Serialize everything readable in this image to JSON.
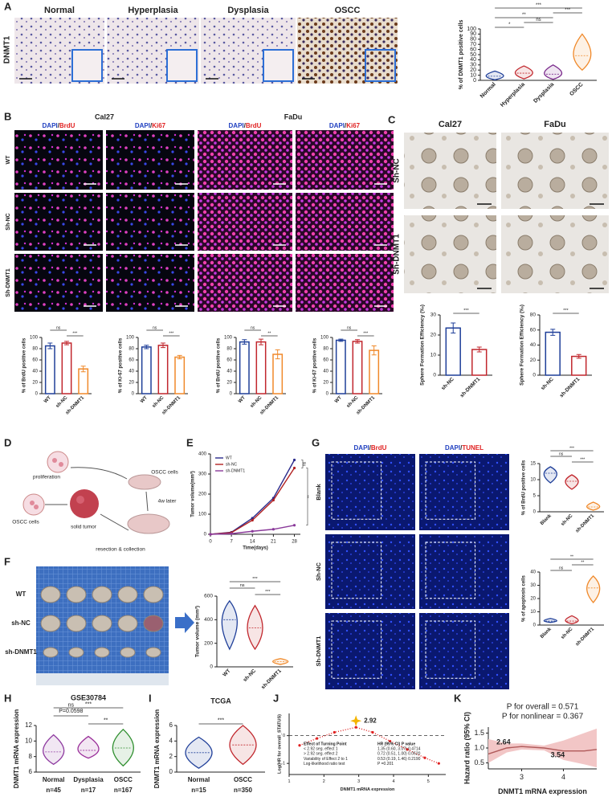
{
  "panel_labels": [
    "A",
    "B",
    "C",
    "D",
    "E",
    "F",
    "G",
    "H",
    "I",
    "J",
    "K"
  ],
  "panel_a": {
    "row_label": "DNMT1",
    "columns": [
      "Normal",
      "Hyperplasia",
      "Dysplasia",
      "OSCC"
    ]
  },
  "panel_b": {
    "cell_lines": [
      "Cal27",
      "FaDu"
    ],
    "stains": [
      {
        "dapi": "DAPI",
        "sep": "/",
        "marker": "BrdU"
      },
      {
        "dapi": "DAPI",
        "sep": "/",
        "marker": "Ki67"
      },
      {
        "dapi": "DAPI",
        "sep": "/",
        "marker": "BrdU"
      },
      {
        "dapi": "DAPI",
        "sep": "/",
        "marker": "Ki67"
      }
    ],
    "rows": [
      "WT",
      "Sh-NC",
      "Sh-DNMT1"
    ]
  },
  "panel_c": {
    "cell_lines": [
      "Cal27",
      "FaDu"
    ],
    "rows": [
      "Sh-NC",
      "Sh-DNMT1"
    ]
  },
  "panel_d": {
    "labels": [
      "proliferation",
      "OSCC cells",
      "OSCC cells",
      "4w later",
      "solid tumor",
      "resection & collection"
    ]
  },
  "panel_f": {
    "rows": [
      "WT",
      "sh-NC",
      "sh-DNMT1"
    ]
  },
  "panel_g": {
    "stains": [
      {
        "dapi": "DAPI",
        "sep": "/",
        "marker": "BrdU"
      },
      {
        "dapi": "DAPI",
        "sep": "/",
        "marker": "TUNEL"
      }
    ],
    "rows": [
      "Blank",
      "Sh-NC",
      "Sh-DNMT1"
    ]
  },
  "chart_data": [
    {
      "type": "violin",
      "ylabel": "% of DNMT1 positive cells",
      "categories": [
        "Normal",
        "Hyperplasia",
        "Dysplasia",
        "OSCC"
      ],
      "medians": [
        8,
        14,
        12,
        48
      ],
      "mins": [
        1,
        3,
        2,
        20
      ],
      "maxs": [
        18,
        28,
        30,
        90
      ],
      "colors": [
        "#1f3f99",
        "#c1272d",
        "#7a2a8c",
        "#f0892a"
      ],
      "ylim": [
        0,
        100
      ],
      "yticks": [
        0,
        10,
        20,
        30,
        40,
        50,
        60,
        70,
        80,
        90,
        100
      ],
      "brackets": [
        {
          "label": "***",
          "between": [
            "Normal",
            "OSCC"
          ]
        },
        {
          "label": "***",
          "between": [
            "Dysplasia",
            "OSCC"
          ]
        },
        {
          "label": "**",
          "between": [
            "Normal",
            "Dysplasia"
          ]
        },
        {
          "label": "ns",
          "between": [
            "Hyperplasia",
            "Dysplasia"
          ]
        },
        {
          "label": "*",
          "between": [
            "Normal",
            "Hyperplasia"
          ]
        }
      ]
    },
    {
      "type": "bar",
      "ylabel": "% of BrdU positive cells",
      "categories": [
        "WT",
        "sh-NC",
        "sh-DNMT1"
      ],
      "values": [
        85,
        90,
        44
      ],
      "errors": [
        5,
        3,
        5
      ],
      "colors": [
        "#1f3f99",
        "#c1272d",
        "#f0892a"
      ],
      "ylim": [
        0,
        100
      ],
      "yticks": [
        0,
        20,
        40,
        60,
        80,
        100
      ],
      "brackets": [
        {
          "label": "ns",
          "between": [
            "WT",
            "sh-NC"
          ]
        },
        {
          "label": "***",
          "between": [
            "sh-NC",
            "sh-DNMT1"
          ]
        }
      ]
    },
    {
      "type": "bar",
      "ylabel": "% of Ki-67 positive cells",
      "categories": [
        "WT",
        "sh-NC",
        "sh-DNMT1"
      ],
      "values": [
        83,
        86,
        65
      ],
      "errors": [
        3,
        4,
        3
      ],
      "colors": [
        "#1f3f99",
        "#c1272d",
        "#f0892a"
      ],
      "ylim": [
        0,
        100
      ],
      "yticks": [
        0,
        20,
        40,
        60,
        80,
        100
      ],
      "brackets": [
        {
          "label": "ns",
          "between": [
            "WT",
            "sh-NC"
          ]
        },
        {
          "label": "***",
          "between": [
            "sh-NC",
            "sh-DNMT1"
          ]
        }
      ]
    },
    {
      "type": "bar",
      "ylabel": "% of BrdU positive cells",
      "categories": [
        "WT",
        "sh-NC",
        "sh-DNMT1"
      ],
      "values": [
        92,
        92,
        70
      ],
      "errors": [
        4,
        5,
        8
      ],
      "colors": [
        "#1f3f99",
        "#c1272d",
        "#f0892a"
      ],
      "ylim": [
        0,
        100
      ],
      "yticks": [
        0,
        20,
        40,
        60,
        80,
        100
      ],
      "brackets": [
        {
          "label": "ns",
          "between": [
            "WT",
            "sh-NC"
          ]
        },
        {
          "label": "**",
          "between": [
            "sh-NC",
            "sh-DNMT1"
          ]
        }
      ]
    },
    {
      "type": "bar",
      "ylabel": "% of Ki-67 positive cells",
      "categories": [
        "WT",
        "sh-NC",
        "sh-DNMT1"
      ],
      "values": [
        95,
        93,
        77
      ],
      "errors": [
        2,
        3,
        8
      ],
      "colors": [
        "#1f3f99",
        "#c1272d",
        "#f0892a"
      ],
      "ylim": [
        0,
        100
      ],
      "yticks": [
        0,
        20,
        40,
        60,
        80,
        100
      ],
      "brackets": [
        {
          "label": "ns",
          "between": [
            "WT",
            "sh-NC"
          ]
        },
        {
          "label": "***",
          "between": [
            "sh-NC",
            "sh-DNMT1"
          ]
        }
      ]
    },
    {
      "type": "bar",
      "ylabel": "Sphere Formation Efficiency (‰)",
      "categories": [
        "sh-NC",
        "sh-DNMT1"
      ],
      "values": [
        23.5,
        12.8
      ],
      "errors": [
        2.5,
        1.2
      ],
      "colors": [
        "#1f3f99",
        "#c1272d"
      ],
      "ylim": [
        0,
        30
      ],
      "yticks": [
        0,
        10,
        20,
        30
      ],
      "brackets": [
        {
          "label": "***",
          "between": [
            "sh-NC",
            "sh-DNMT1"
          ]
        }
      ]
    },
    {
      "type": "bar",
      "ylabel": "Sphere Formation Efficiency (‰)",
      "categories": [
        "sh-NC",
        "sh-DNMT1"
      ],
      "values": [
        57,
        25
      ],
      "errors": [
        4,
        2.5
      ],
      "colors": [
        "#1f3f99",
        "#c1272d"
      ],
      "ylim": [
        0,
        80
      ],
      "yticks": [
        0,
        20,
        40,
        60,
        80
      ],
      "brackets": [
        {
          "label": "***",
          "between": [
            "sh-NC",
            "sh-DNMT1"
          ]
        }
      ]
    },
    {
      "type": "line",
      "xlabel": "Time(days)",
      "ylabel": "Tumor volume(mm³)",
      "x": [
        0,
        7,
        14,
        21,
        28
      ],
      "series": [
        {
          "name": "WT",
          "color": "#2b2b8c",
          "values": [
            0,
            10,
            80,
            180,
            370
          ]
        },
        {
          "name": "sh-NC",
          "color": "#b22222",
          "values": [
            0,
            8,
            70,
            170,
            330
          ]
        },
        {
          "name": "sh-DNMT1",
          "color": "#8a3a9a",
          "values": [
            0,
            3,
            15,
            25,
            45
          ]
        }
      ],
      "xlim": [
        0,
        30
      ],
      "xticks": [
        0,
        7,
        14,
        21,
        28
      ],
      "ylim": [
        0,
        400
      ],
      "yticks": [
        0,
        100,
        200,
        300,
        400
      ],
      "markers": true,
      "legend": "upper left",
      "comparisons": [
        {
          "label": "ns",
          "between": [
            "WT",
            "sh-NC"
          ]
        },
        {
          "label": "**",
          "between": [
            "sh-NC",
            "sh-DNMT1"
          ]
        }
      ]
    },
    {
      "type": "violin",
      "ylabel": "Tumor volume (mm³)",
      "categories": [
        "WT",
        "sh-NC",
        "sh-DNMT1"
      ],
      "medians": [
        400,
        330,
        45
      ],
      "mins": [
        150,
        150,
        20
      ],
      "maxs": [
        560,
        520,
        70
      ],
      "colors": [
        "#1f3f99",
        "#c1272d",
        "#f0892a"
      ],
      "ylim": [
        0,
        600
      ],
      "yticks": [
        0,
        200,
        400,
        600
      ],
      "brackets": [
        {
          "label": "***",
          "between": [
            "WT",
            "sh-DNMT1"
          ]
        },
        {
          "label": "ns",
          "between": [
            "WT",
            "sh-NC"
          ]
        },
        {
          "label": "***",
          "between": [
            "sh-NC",
            "sh-DNMT1"
          ]
        }
      ]
    },
    {
      "type": "violin",
      "ylabel": "% of BrdU positive cells",
      "categories": [
        "Blank",
        "sh-NC",
        "sh-DNMT1"
      ],
      "medians": [
        12,
        9.5,
        1.5
      ],
      "mins": [
        9,
        7,
        0.5
      ],
      "maxs": [
        14,
        11.5,
        3
      ],
      "colors": [
        "#1f3f99",
        "#c1272d",
        "#f0892a"
      ],
      "ylim": [
        0,
        15
      ],
      "yticks": [
        0,
        5,
        10,
        15
      ],
      "brackets": [
        {
          "label": "***",
          "between": [
            "Blank",
            "sh-DNMT1"
          ]
        },
        {
          "label": "ns",
          "between": [
            "Blank",
            "sh-NC"
          ]
        },
        {
          "label": "***",
          "between": [
            "sh-NC",
            "sh-DNMT1"
          ]
        }
      ]
    },
    {
      "type": "violin",
      "ylabel": "% of apoptosis cells",
      "categories": [
        "Blank",
        "sh-NC",
        "sh-DNMT1"
      ],
      "medians": [
        3,
        3,
        28
      ],
      "mins": [
        2,
        1,
        17
      ],
      "maxs": [
        5,
        7,
        37
      ],
      "colors": [
        "#1f3f99",
        "#c1272d",
        "#f0892a"
      ],
      "ylim": [
        0,
        40
      ],
      "yticks": [
        0,
        10,
        20,
        30,
        40
      ],
      "brackets": [
        {
          "label": "**",
          "between": [
            "Blank",
            "sh-DNMT1"
          ]
        },
        {
          "label": "**",
          "between": [
            "sh-NC",
            "sh-DNMT1"
          ]
        },
        {
          "label": "ns",
          "between": [
            "Blank",
            "sh-NC"
          ]
        }
      ]
    },
    {
      "type": "violin",
      "title": "GSE30784",
      "ylabel": "DNMT1 mRNA expression",
      "categories": [
        "Normal",
        "Dysplasia",
        "OSCC"
      ],
      "medians": [
        8.6,
        8.8,
        9.1
      ],
      "mins": [
        7,
        7.8,
        6.8
      ],
      "maxs": [
        10.8,
        10.6,
        11.5
      ],
      "colors": [
        "#8e3aa0",
        "#9a2f9a",
        "#2f8f2f"
      ],
      "ylim": [
        6,
        12
      ],
      "yticks": [
        6,
        8,
        10,
        12
      ],
      "sample_sizes": [
        "n=45",
        "n=17",
        "n=167"
      ],
      "brackets": [
        {
          "label": "***",
          "between": [
            "Normal",
            "OSCC"
          ]
        },
        {
          "label": "ns",
          "detail": "P=0.0598",
          "between": [
            "Normal",
            "Dysplasia"
          ]
        },
        {
          "label": "**",
          "between": [
            "Dysplasia",
            "OSCC"
          ]
        }
      ]
    },
    {
      "type": "violin",
      "title": "TCGA",
      "ylabel": "DNMT1 mRNA expression",
      "categories": [
        "Normal",
        "OSCC"
      ],
      "medians": [
        2.5,
        3.5
      ],
      "mins": [
        0.5,
        1
      ],
      "maxs": [
        4.5,
        6
      ],
      "colors": [
        "#1f3f99",
        "#c1272d"
      ],
      "ylim": [
        0,
        6
      ],
      "yticks": [
        0,
        2,
        4,
        6
      ],
      "sample_sizes": [
        "n=15",
        "n=350"
      ],
      "brackets": [
        {
          "label": "***",
          "between": [
            "Normal",
            "OSCC"
          ]
        }
      ]
    },
    {
      "type": "line",
      "xlabel": "DNMT1 mRNA expression",
      "ylabel": "Log(HR for overall_STATUS)",
      "x": [
        1.3,
        1.8,
        2.3,
        2.92,
        3.4,
        3.9,
        4.4,
        4.9,
        5.3
      ],
      "values": [
        -0.35,
        -0.1,
        0.12,
        0.3,
        0.12,
        -0.2,
        -0.5,
        -0.8,
        -1.0
      ],
      "color": "#e02020",
      "xlim": [
        1,
        5.5
      ],
      "xticks": [
        1,
        2,
        3,
        4,
        5
      ],
      "ylim": [
        -1.4,
        0.8
      ],
      "yticks": [
        -1,
        0
      ],
      "markers": true,
      "reference_line": 0,
      "turning_points": [
        2.92
      ],
      "table": {
        "header": [
          "Effect of Turning Point",
          "HR (95% CI) P value"
        ],
        "rows": [
          [
            "< 2.92 seg. effect 1",
            "1.35 (0.60, 3.07) 0.4714"
          ],
          [
            "> 2.92 seg. effect 2",
            "0.72 (0.51, 1.00) 0.0520"
          ],
          [
            "Variability of Effect 2 to 1",
            "0.53 (0.19, 1.46) 0.2190"
          ],
          [
            "Log-likelihood ratio test",
            "P =0.201"
          ]
        ]
      }
    },
    {
      "type": "line",
      "xlabel": "DNMT1 mRNA expression",
      "ylabel": "Hazard ratio (95% CI)",
      "x": [
        2.2,
        2.64,
        3.0,
        3.54,
        4.0,
        4.5,
        4.8
      ],
      "values": [
        0.8,
        1.0,
        1.05,
        1.0,
        0.9,
        0.9,
        0.95
      ],
      "lower": [
        0.5,
        0.85,
        0.95,
        0.92,
        0.6,
        0.45,
        0.35
      ],
      "upper": [
        1.3,
        1.15,
        1.15,
        1.08,
        1.25,
        1.5,
        1.65
      ],
      "color": "#b05a5a",
      "band_color": "#f2c6c6",
      "xlim": [
        2.2,
        4.8
      ],
      "xticks": [
        3,
        4
      ],
      "ylim": [
        0.3,
        1.7
      ],
      "yticks": [
        0.5,
        {
          "value": 1,
          "label": "1.0"
        },
        1.5
      ],
      "reference_line": 1,
      "knots": [
        2.64,
        3.54
      ],
      "notes": [
        "P for overall = 0.571",
        "P for nonlinear = 0.367"
      ]
    }
  ]
}
